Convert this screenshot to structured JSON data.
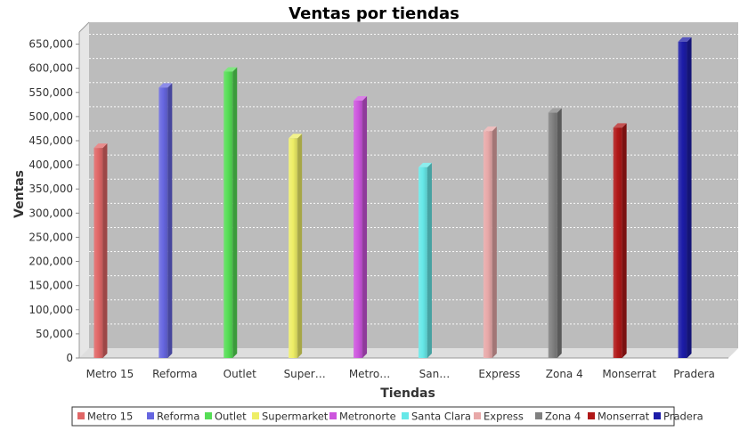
{
  "chart_data": {
    "type": "bar",
    "title": "Ventas por tiendas",
    "xlabel": "Tiendas",
    "ylabel": "Ventas",
    "ylim": [
      0,
      675000
    ],
    "yticks": [
      0,
      50000,
      100000,
      150000,
      200000,
      250000,
      300000,
      350000,
      400000,
      450000,
      500000,
      550000,
      600000,
      650000
    ],
    "ytick_labels": [
      "0",
      "50,000",
      "100,000",
      "150,000",
      "200,000",
      "250,000",
      "300,000",
      "350,000",
      "400,000",
      "450,000",
      "500,000",
      "550,000",
      "600,000",
      "650,000"
    ],
    "categories": [
      "Metro 15",
      "Reforma",
      "Outlet",
      "Super…",
      "Metro…",
      "San…",
      "Express",
      "Zona 4",
      "Monserrat",
      "Pradera"
    ],
    "grid": true,
    "legend_position": "bottom",
    "series": [
      {
        "name": "Metro 15",
        "color": "#e06666",
        "category_index": 0,
        "value": 435000
      },
      {
        "name": "Reforma",
        "color": "#6666e0",
        "category_index": 1,
        "value": 560000
      },
      {
        "name": "Outlet",
        "color": "#55dd55",
        "category_index": 2,
        "value": 593000
      },
      {
        "name": "Supermarket",
        "color": "#eeee66",
        "category_index": 3,
        "value": 455000
      },
      {
        "name": "Metronorte",
        "color": "#cc55dd",
        "category_index": 4,
        "value": 533000
      },
      {
        "name": "Santa Clara",
        "color": "#66e8e8",
        "category_index": 5,
        "value": 395000
      },
      {
        "name": "Express",
        "color": "#e8a8a8",
        "category_index": 6,
        "value": 470000
      },
      {
        "name": "Zona 4",
        "color": "#808080",
        "category_index": 7,
        "value": 508000
      },
      {
        "name": "Monserrat",
        "color": "#b01818",
        "category_index": 8,
        "value": 477000
      },
      {
        "name": "Pradera",
        "color": "#1c1ca8",
        "category_index": 9,
        "value": 655000
      }
    ]
  }
}
